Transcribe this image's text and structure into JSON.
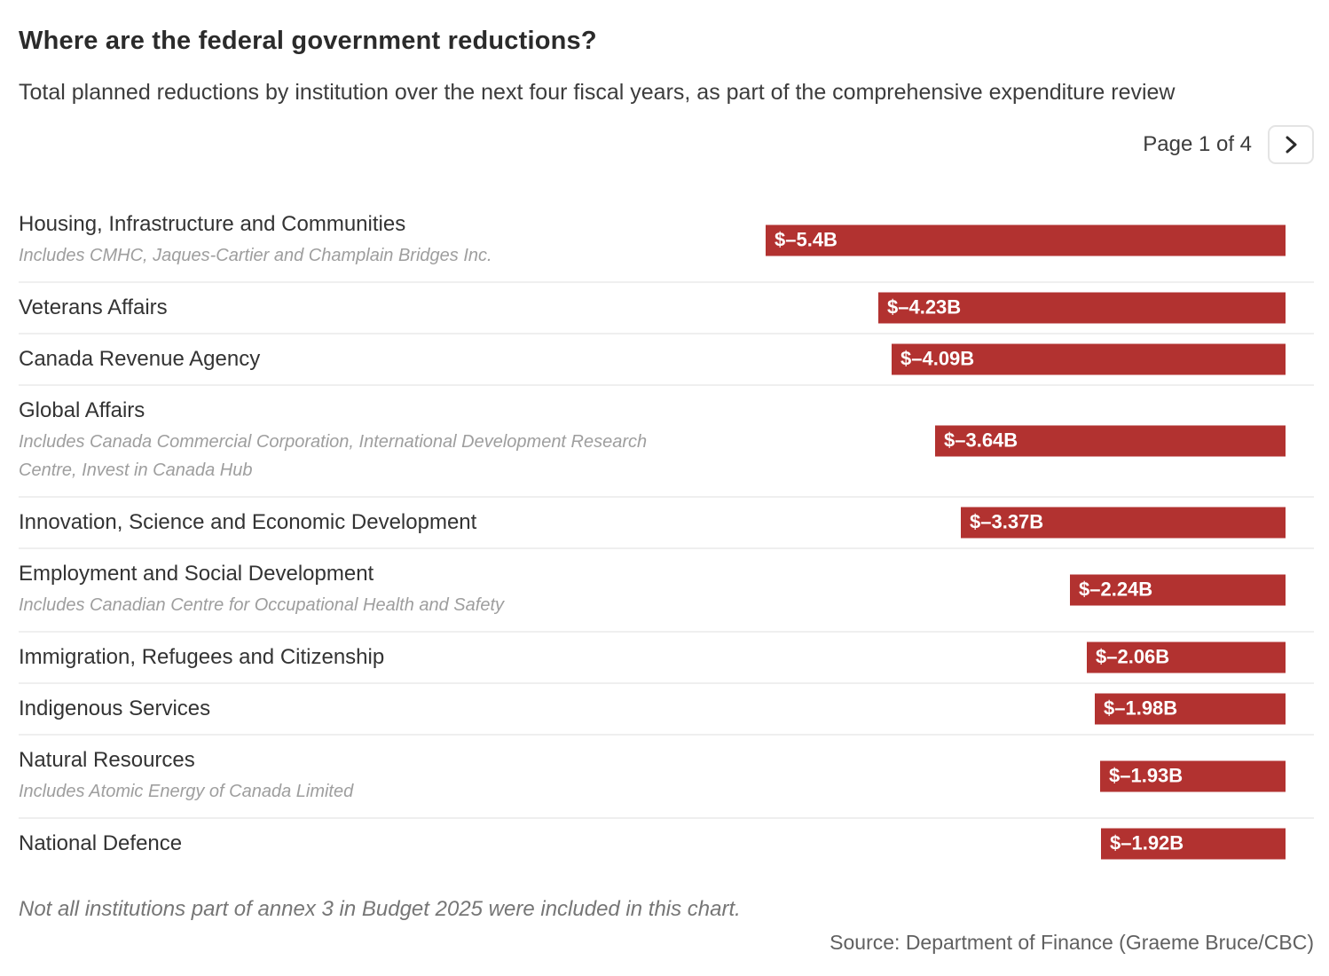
{
  "header": {
    "title": "Where are the federal government reductions?",
    "subtitle": "Total planned reductions by institution over the next four fiscal years, as part of the comprehensive expenditure review"
  },
  "pagination": {
    "label": "Page 1 of 4"
  },
  "chart_data": {
    "type": "bar",
    "orientation": "horizontal",
    "unit": "billions of dollars",
    "value_axis_range": [
      -5.4,
      0
    ],
    "bars_aligned": "right",
    "rows": [
      {
        "label": "Housing, Infrastructure and Communities",
        "note": "Includes CMHC, Jaques-Cartier and Champlain Bridges Inc.",
        "value": -5.4,
        "value_label": "$–5.4B"
      },
      {
        "label": "Veterans Affairs",
        "note": "",
        "value": -4.23,
        "value_label": "$–4.23B"
      },
      {
        "label": "Canada Revenue Agency",
        "note": "",
        "value": -4.09,
        "value_label": "$–4.09B"
      },
      {
        "label": "Global Affairs",
        "note": "Includes Canada Commercial Corporation, International Development Research Centre, Invest in Canada Hub",
        "value": -3.64,
        "value_label": "$–3.64B"
      },
      {
        "label": "Innovation, Science and Economic Development",
        "note": "",
        "value": -3.37,
        "value_label": "$–3.37B"
      },
      {
        "label": "Employment and Social Development",
        "note": "Includes Canadian Centre for Occupational Health and Safety",
        "value": -2.24,
        "value_label": "$–2.24B"
      },
      {
        "label": "Immigration, Refugees and Citizenship",
        "note": "",
        "value": -2.06,
        "value_label": "$–2.06B"
      },
      {
        "label": "Indigenous Services",
        "note": "",
        "value": -1.98,
        "value_label": "$–1.98B"
      },
      {
        "label": "Natural Resources",
        "note": "Includes Atomic Energy of Canada Limited",
        "value": -1.93,
        "value_label": "$–1.93B"
      },
      {
        "label": "National Defence",
        "note": "",
        "value": -1.92,
        "value_label": "$–1.92B"
      }
    ]
  },
  "footer": {
    "note": "Not all institutions part of annex 3 in Budget 2025 were included in this chart.",
    "source": "Source: Department of Finance (Graeme Bruce/CBC)"
  },
  "colors": {
    "bar_red": "#b23230",
    "bar_text": "#ffffff",
    "divider": "#efefef",
    "title_text": "#2b2b2b",
    "note_text": "#9e9e9e"
  }
}
